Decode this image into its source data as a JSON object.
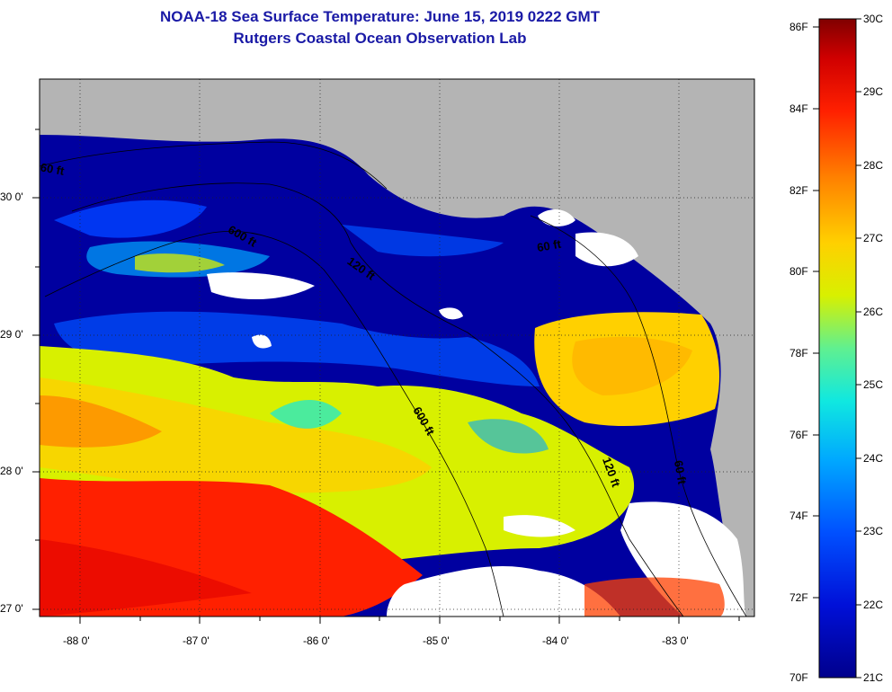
{
  "title": {
    "line1": "NOAA-18 Sea Surface Temperature:  June 15, 2019 0222 GMT",
    "line2": "Rutgers Coastal Ocean Observation Lab"
  },
  "map": {
    "lon_ticks": [
      "-88 0'",
      "-87 0'",
      "-86 0'",
      "-85 0'",
      "-84 0'",
      "-83 0'"
    ],
    "lat_ticks": [
      "30 0'",
      "29 0'",
      "28 0'",
      "27 0'"
    ],
    "contour_labels": [
      "60 ft",
      "600 ft",
      "120 ft",
      "600 ft",
      "120 ft",
      "60 ft",
      "60 ft"
    ],
    "colors": {
      "land": "#b4b4b4",
      "cloud": "#ffffff",
      "cold": "#0000a0",
      "warm": "#ff2000"
    }
  },
  "colorbar": {
    "fahrenheit": [
      "86F",
      "84F",
      "82F",
      "80F",
      "78F",
      "76F",
      "74F",
      "72F",
      "70F"
    ],
    "celsius": [
      "30C",
      "29C",
      "28C",
      "27C",
      "26C",
      "25C",
      "24C",
      "23C",
      "22C",
      "21C"
    ]
  }
}
